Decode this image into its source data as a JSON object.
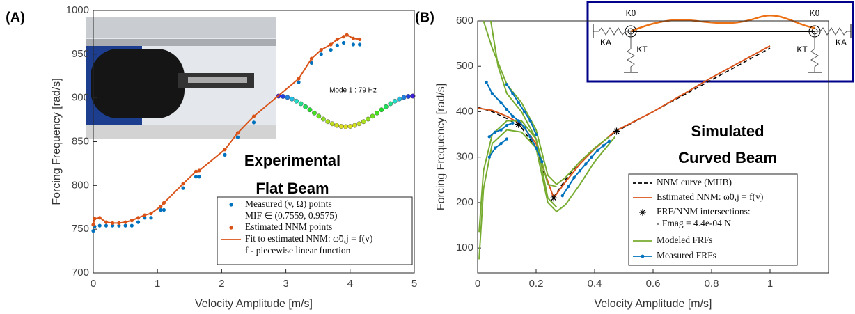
{
  "chart_data": [
    {
      "type": "line",
      "panel_label": "(A)",
      "x_label": "Velocity Amplitude [m/s]",
      "y_label": "Forcing Frequency [rad/s]",
      "xlim": [
        0,
        5
      ],
      "xticks": [
        0,
        1,
        2,
        3,
        4,
        5
      ],
      "ylim": [
        700,
        1000
      ],
      "yticks": [
        700,
        750,
        800,
        850,
        900,
        950,
        1000
      ],
      "grid": false,
      "annotations": [
        "Experimental",
        "Flat Beam",
        "Mode 1 : 79 Hz"
      ],
      "series": [
        {
          "name": "Measured (v, Ω) points",
          "note": "MIF ∈ (0.7559, 0.9575)",
          "color": "#0072bd",
          "style": "markers",
          "x": [
            0,
            0.02,
            0.1,
            0.2,
            0.3,
            0.4,
            0.5,
            0.6,
            0.7,
            0.8,
            0.9,
            1.05,
            1.1,
            1.4,
            1.6,
            1.65,
            2.05,
            2.25,
            2.5,
            3.2,
            3.4,
            3.55,
            3.7,
            3.8,
            3.9,
            4.05,
            4.15
          ],
          "values": [
            748,
            753,
            754,
            754,
            754,
            754,
            754,
            754,
            758,
            763,
            763,
            772,
            772,
            797,
            810,
            810,
            835,
            855,
            872,
            918,
            940,
            950,
            955,
            960,
            963,
            961,
            961
          ]
        },
        {
          "name": "Estimated NNM points",
          "color": "#d95319",
          "style": "markers",
          "x": [
            0,
            0.02,
            0.1,
            0.2,
            0.3,
            0.4,
            0.5,
            0.6,
            0.7,
            0.8,
            0.9,
            1.05,
            1.1,
            1.4,
            1.6,
            1.65,
            2.05,
            2.25,
            2.5,
            3.2,
            3.4,
            3.55,
            3.7,
            3.8,
            3.9,
            3.95,
            4.05,
            4.15
          ],
          "values": [
            755,
            762,
            763,
            758,
            757,
            757,
            758,
            760,
            763,
            766,
            768,
            776,
            780,
            802,
            816,
            817,
            841,
            860,
            879,
            922,
            945,
            955,
            961,
            967,
            970,
            972,
            968,
            967
          ]
        },
        {
          "name": "Fit to estimated NNM: ω̃0,j = f(v)",
          "note": "f - piecewise linear function",
          "color": "#d95319",
          "style": "line",
          "x": [
            0,
            0.02,
            0.1,
            0.2,
            0.3,
            0.4,
            0.5,
            0.6,
            0.7,
            0.8,
            0.9,
            1.05,
            1.1,
            1.4,
            1.6,
            1.65,
            2.05,
            2.25,
            2.5,
            3.2,
            3.4,
            3.55,
            3.7,
            3.8,
            3.9,
            3.95,
            4.05,
            4.15
          ],
          "values": [
            755,
            762,
            763,
            758,
            757,
            757,
            758,
            760,
            763,
            766,
            768,
            776,
            780,
            802,
            816,
            817,
            841,
            860,
            879,
            922,
            945,
            955,
            961,
            967,
            970,
            972,
            968,
            967
          ]
        }
      ]
    },
    {
      "type": "line",
      "panel_label": "(B)",
      "x_label": "Velocity Amplitude [m/s]",
      "y_label": "Forcing Frequency [rad/s]",
      "xlim": [
        0,
        1.2
      ],
      "xticks": [
        0,
        0.2,
        0.4,
        0.6,
        0.8,
        1
      ],
      "ylim": [
        45,
        600
      ],
      "yticks": [
        100,
        200,
        300,
        400,
        500,
        600
      ],
      "grid": false,
      "annotations": [
        "Simulated",
        "Curved Beam"
      ],
      "inset_labels": [
        "Kθ",
        "KA",
        "KT",
        "Kθ",
        "KT",
        "KA"
      ],
      "series": [
        {
          "name": "NNM curve (MHB)",
          "color": "#000000",
          "style": "dashed",
          "x": [
            0,
            0.05,
            0.1,
            0.15,
            0.2,
            0.23,
            0.26,
            0.3,
            0.35,
            0.4,
            0.47,
            0.6,
            0.8,
            1.0
          ],
          "values": [
            410,
            400,
            385,
            365,
            320,
            260,
            212,
            250,
            290,
            320,
            355,
            400,
            470,
            540
          ]
        },
        {
          "name": "Estimated NNM: ω̃0,j = f(v)",
          "color": "#d95319",
          "style": "line",
          "x": [
            0,
            0.05,
            0.1,
            0.15,
            0.2,
            0.23,
            0.26,
            0.3,
            0.35,
            0.4,
            0.47,
            0.6,
            0.8,
            1.0
          ],
          "values": [
            408,
            403,
            390,
            372,
            330,
            265,
            210,
            245,
            285,
            318,
            357,
            400,
            475,
            545
          ]
        },
        {
          "name": "FRF/NNM intersections:",
          "note": "- Fmag = 4.4e-04 N",
          "color": "#000000",
          "style": "stars",
          "x": [
            0.14,
            0.26,
            0.475
          ],
          "values": [
            372,
            210,
            357
          ]
        },
        {
          "name": "Modeled FRFs",
          "color": "#77ac30",
          "style": "line",
          "curves": [
            {
              "x": [
                0.02,
                0.05,
                0.1,
                0.15,
                0.2,
                0.24,
                0.27,
                0.3,
                0.35,
                0.4,
                0.45
              ],
              "values": [
                600,
                540,
                460,
                420,
                360,
                260,
                240,
                255,
                290,
                320,
                345
              ]
            },
            {
              "x": [
                0.045,
                0.07,
                0.1,
                0.15,
                0.2,
                0.24,
                0.27
              ],
              "values": [
                600,
                500,
                440,
                400,
                340,
                240,
                235
              ]
            },
            {
              "x": [
                0.005,
                0.02,
                0.05,
                0.1,
                0.15,
                0.2,
                0.24,
                0.27,
                0.3,
                0.35,
                0.4,
                0.47
              ],
              "values": [
                75,
                230,
                330,
                360,
                355,
                320,
                200,
                180,
                195,
                240,
                290,
                345
              ]
            },
            {
              "x": [
                0.005,
                0.02,
                0.05,
                0.1,
                0.15,
                0.2,
                0.24,
                0.27
              ],
              "values": [
                135,
                270,
                350,
                380,
                380,
                340,
                210,
                190
              ]
            }
          ]
        },
        {
          "name": "Measured FRFs",
          "color": "#0072bd",
          "style": "line-markers",
          "curves": [
            {
              "x": [
                0.03,
                0.05,
                0.08,
                0.1,
                0.12,
                0.14,
                0.16,
                0.18,
                0.2,
                0.22
              ],
              "values": [
                465,
                440,
                420,
                405,
                390,
                380,
                365,
                345,
                320,
                290
              ]
            },
            {
              "x": [
                0.1,
                0.12,
                0.14,
                0.16,
                0.18,
                0.2
              ],
              "values": [
                460,
                440,
                420,
                400,
                380,
                350
              ]
            },
            {
              "x": [
                0.04,
                0.06,
                0.08,
                0.1,
                0.12
              ],
              "values": [
                345,
                355,
                360,
                370,
                375
              ]
            },
            {
              "x": [
                0.04,
                0.06,
                0.08,
                0.1
              ],
              "values": [
                300,
                320,
                330,
                340
              ]
            },
            {
              "x": [
                0.29,
                0.31,
                0.33,
                0.35,
                0.37,
                0.39,
                0.41,
                0.43,
                0.45
              ],
              "values": [
                215,
                235,
                255,
                270,
                285,
                300,
                315,
                325,
                335
              ]
            }
          ]
        }
      ]
    }
  ]
}
